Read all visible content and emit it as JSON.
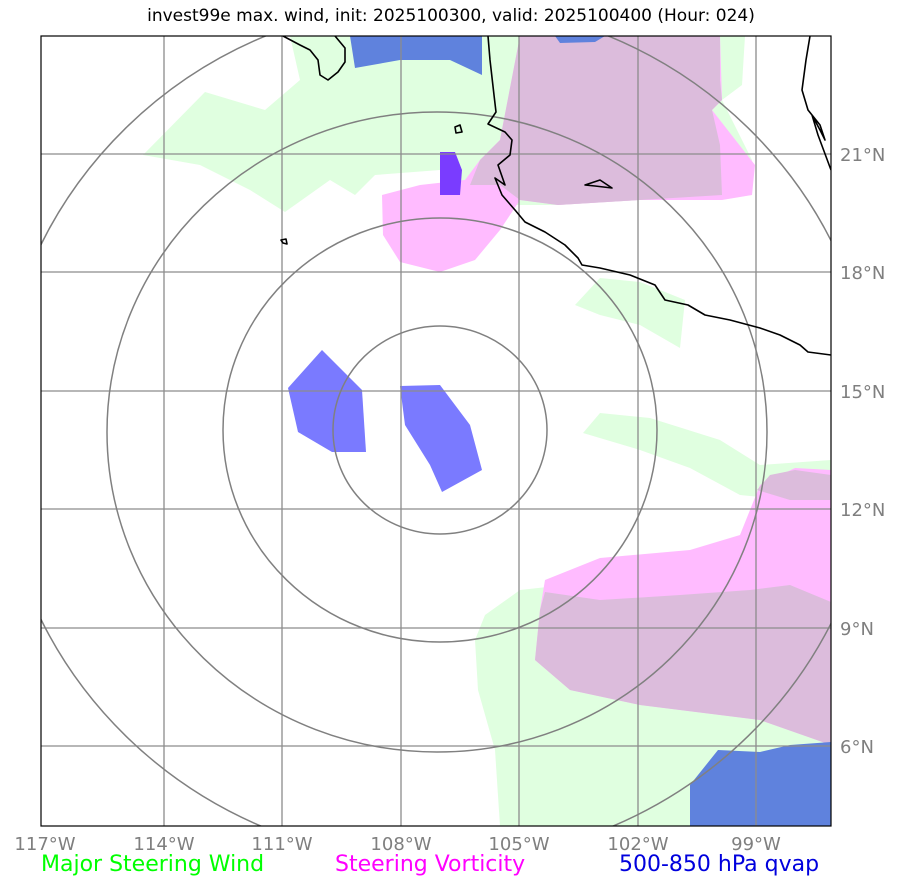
{
  "title": "invest99e max. wind, init: 2025100300, valid: 2025100400 (Hour: 024)",
  "map": {
    "lon_ticks": [
      "117°W",
      "114°W",
      "111°W",
      "108°W",
      "105°W",
      "102°W",
      "99°W"
    ],
    "lat_ticks": [
      "21°N",
      "18°N",
      "15°N",
      "12°N",
      "9°N",
      "6°N"
    ],
    "colors": {
      "steering_wind": "#e0ffe0",
      "steering_vorticity": "#ffbbff",
      "overlap": "#dcbcdc",
      "qvap": "#7a7aff",
      "qvap_dark": "#5f82dd",
      "qvap_deep": "#7a3cff",
      "gridline": "#8c8c8c",
      "range_ring": "#808080",
      "coastline": "#000000"
    },
    "range_ring_count": 4
  },
  "legend": {
    "steering_wind": {
      "label": "Major Steering Wind",
      "color": "#00ff00"
    },
    "steering_vorticity": {
      "label": "Steering Vorticity",
      "color": "#ff00ff"
    },
    "qvap": {
      "label": "500-850 hPa qvap",
      "color": "#0000dd"
    }
  }
}
